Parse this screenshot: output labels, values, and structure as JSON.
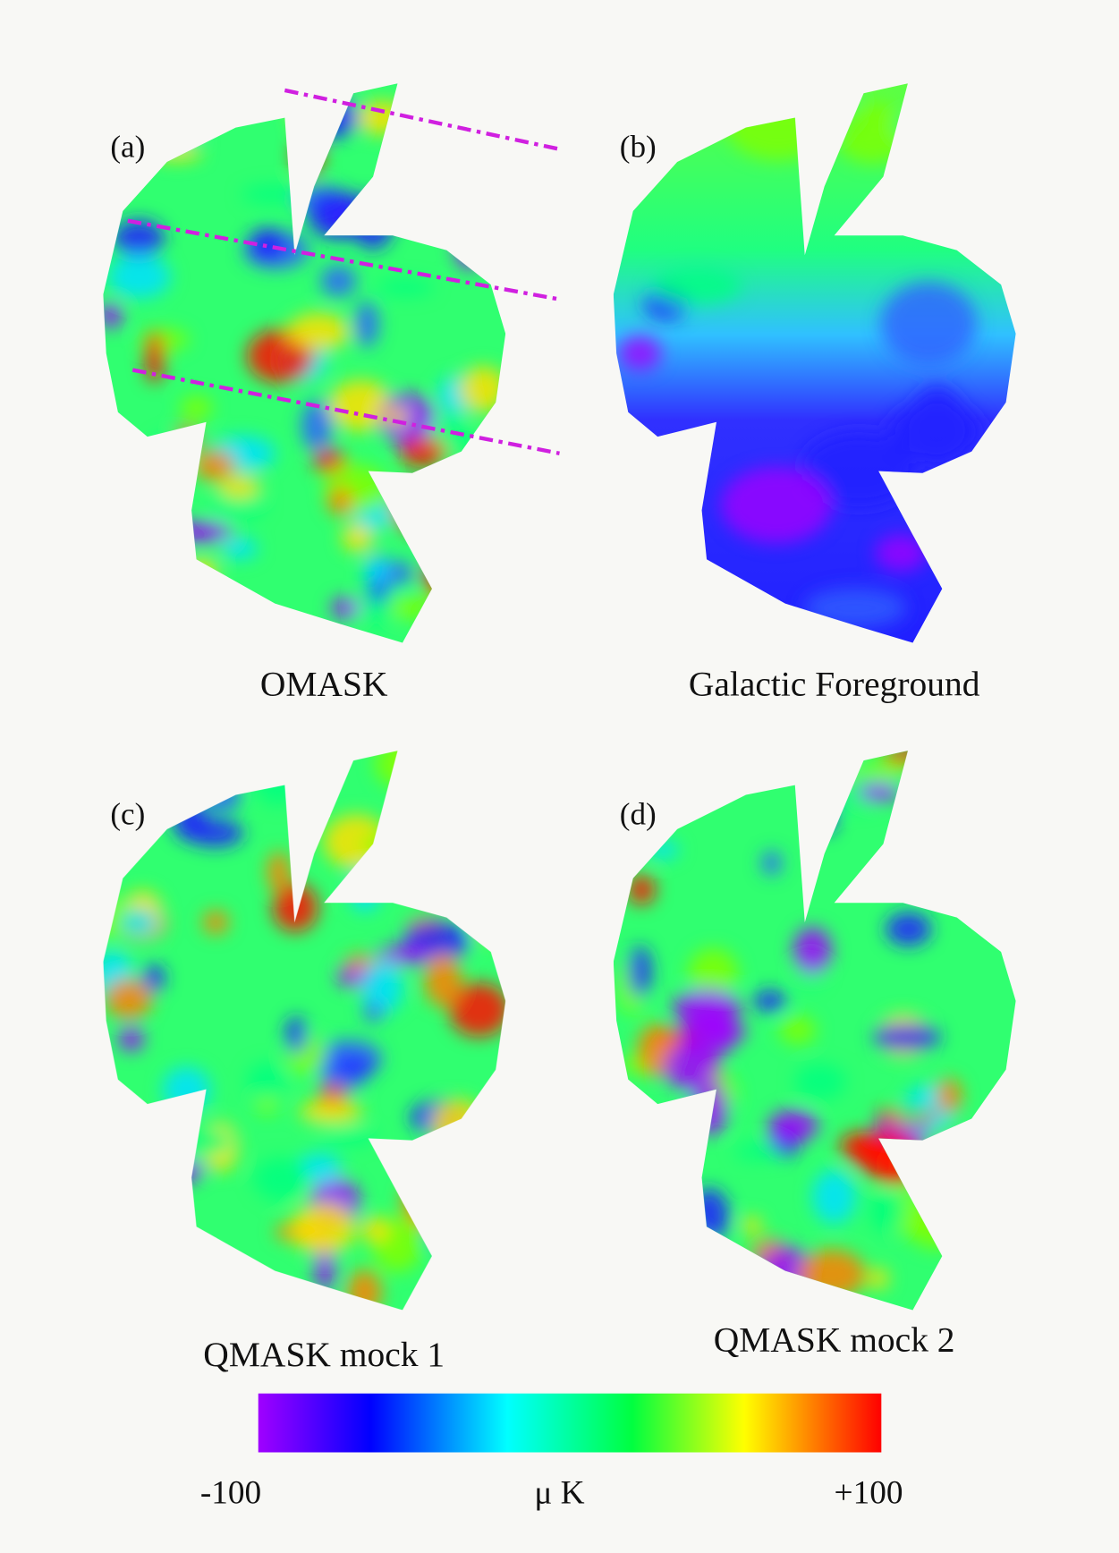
{
  "panels": [
    {
      "label": "(a)",
      "caption": "OMASK"
    },
    {
      "label": "(b)",
      "caption": "Galactic Foreground"
    },
    {
      "label": "(c)",
      "caption": "QMASK mock 1"
    },
    {
      "label": "(d)",
      "caption": "QMASK mock 2"
    }
  ],
  "colorbar": {
    "min_label": "-100",
    "unit": "μ K",
    "max_label": "+100"
  }
}
